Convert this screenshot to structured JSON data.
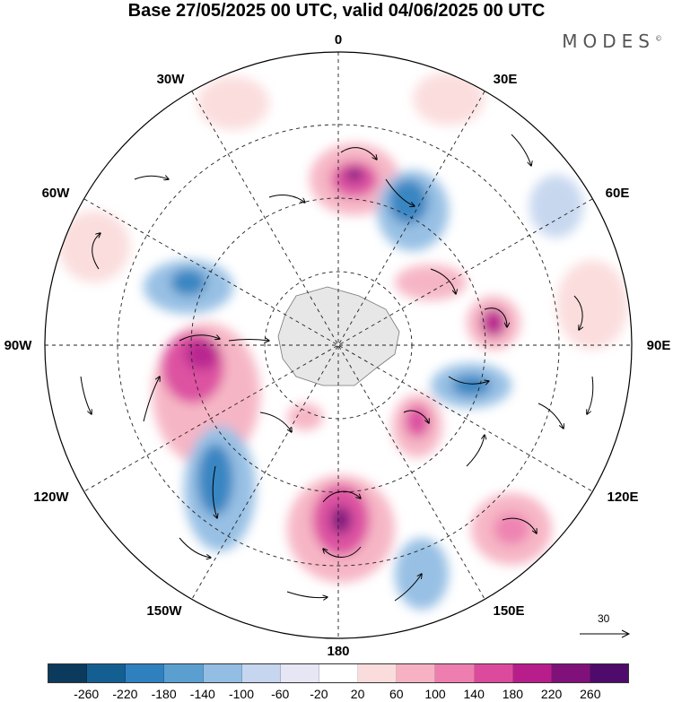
{
  "title": "Base 27/05/2025 00 UTC, valid 04/06/2025 00 UTC",
  "brand": "MODES",
  "brand_mark": "©",
  "longitude_labels": {
    "lon_0": "0",
    "lon_30e": "30E",
    "lon_60e": "60E",
    "lon_90e": "90E",
    "lon_120e": "120E",
    "lon_150e": "150E",
    "lon_180": "180",
    "lon_150w": "150W",
    "lon_120w": "120W",
    "lon_90w": "90W",
    "lon_60w": "60W",
    "lon_30w": "30W"
  },
  "reference_vector": {
    "label": "30"
  },
  "colorbar": {
    "ticks": [
      "-260",
      "-220",
      "-180",
      "-140",
      "-100",
      "-60",
      "-20",
      "20",
      "60",
      "100",
      "140",
      "180",
      "220",
      "260"
    ],
    "colors": [
      "#0c3a5c",
      "#145f91",
      "#2f80bf",
      "#5b9fd1",
      "#93bde3",
      "#c5d6ee",
      "#e6e6f4",
      "#ffffff",
      "#fbdcdc",
      "#f6b2c2",
      "#ee7eaf",
      "#dc4a9d",
      "#b71e8b",
      "#80117a",
      "#4e0b6c"
    ]
  },
  "colors": {
    "land": "#e7e7e7",
    "background": "#ffffff"
  }
}
